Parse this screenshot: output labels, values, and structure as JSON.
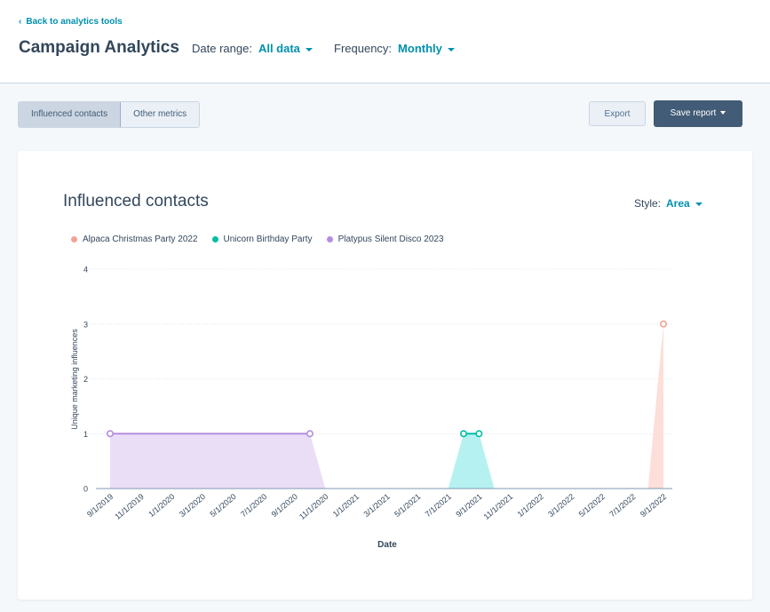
{
  "header": {
    "back_link": "Back to analytics tools",
    "title": "Campaign Analytics",
    "date_range_label": "Date range:",
    "date_range_value": "All data",
    "frequency_label": "Frequency:",
    "frequency_value": "Monthly"
  },
  "toolbar": {
    "tabs": [
      "Influenced contacts",
      "Other metrics"
    ],
    "active_tab": "Influenced contacts",
    "export_label": "Export",
    "save_label": "Save report"
  },
  "card": {
    "title": "Influenced contacts",
    "style_label": "Style:",
    "style_value": "Area"
  },
  "colors": {
    "accent": "#0091ae",
    "primary_button": "#425b76"
  },
  "chart_data": {
    "type": "area",
    "xlabel": "Date",
    "ylabel": "Unique marketing influences",
    "ylim": [
      0,
      4
    ],
    "yticks": [
      0,
      1,
      2,
      3,
      4
    ],
    "legend_position": "top-left",
    "grid": true,
    "x_tick_labels": [
      "9/1/2019",
      "11/1/2019",
      "1/1/2020",
      "3/1/2020",
      "5/1/2020",
      "7/1/2020",
      "9/1/2020",
      "11/1/2020",
      "1/1/2021",
      "3/1/2021",
      "5/1/2021",
      "7/1/2021",
      "9/1/2021",
      "11/1/2021",
      "1/1/2022",
      "3/1/2022",
      "5/1/2022",
      "7/1/2022",
      "9/1/2022"
    ],
    "x_range": [
      "9/1/2019",
      "9/1/2022"
    ],
    "series": [
      {
        "name": "Alpaca Christmas Party 2022",
        "color": "#f2a396",
        "fill": "#fddcd6",
        "points": [
          {
            "x": "9/1/2022",
            "y": 3
          }
        ]
      },
      {
        "name": "Unicorn Birthday Party",
        "color": "#00bda5",
        "fill": "#b2f0f0",
        "points": [
          {
            "x": "8/1/2021",
            "y": 1
          },
          {
            "x": "9/1/2021",
            "y": 1
          }
        ]
      },
      {
        "name": "Platypus Silent Disco 2023",
        "color": "#b48ede",
        "fill": "#e9dcf7",
        "points": [
          {
            "x": "9/1/2019",
            "y": 1
          },
          {
            "x": "10/1/2020",
            "y": 1
          }
        ]
      }
    ]
  }
}
